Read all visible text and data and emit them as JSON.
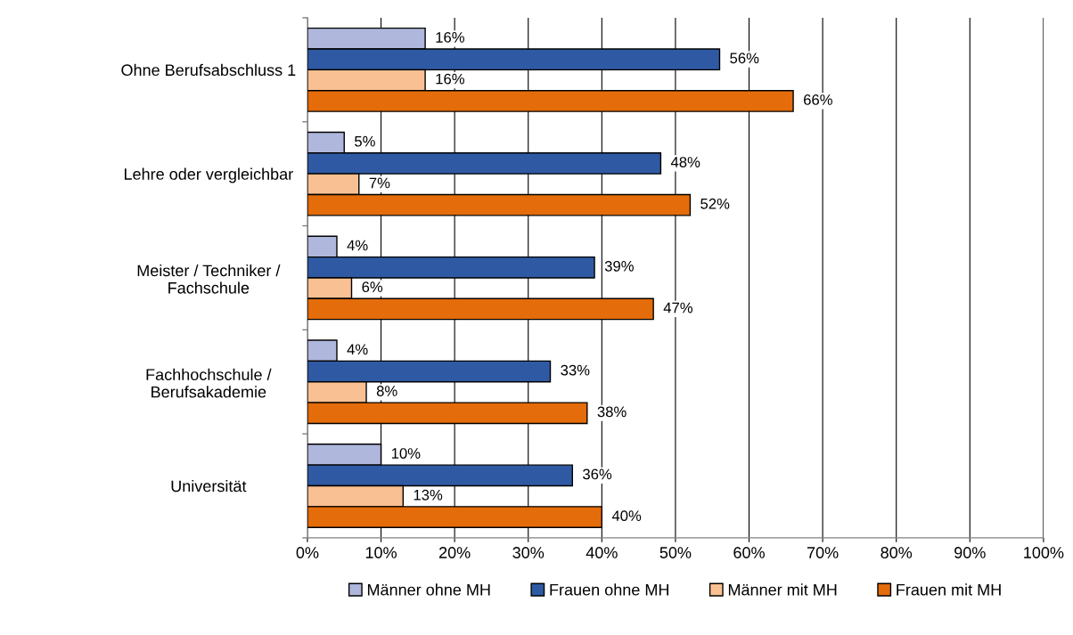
{
  "chart_data": {
    "type": "bar",
    "orientation": "horizontal",
    "categories": [
      "Ohne Berufsabschluss 1",
      "Lehre oder vergleichbar",
      "Meister / Techniker /\nFachschule",
      "Fachhochschule /\nBerufsakademie",
      "Universität"
    ],
    "series": [
      {
        "name": "Männer ohne MH",
        "color": "#b0b7dc",
        "values": [
          16,
          5,
          4,
          4,
          10
        ],
        "value_labels": [
          "16%",
          "5%",
          "4%",
          "4%",
          "10%"
        ]
      },
      {
        "name": "Frauen ohne MH",
        "color": "#2f5aa3",
        "values": [
          56,
          48,
          39,
          33,
          36
        ],
        "value_labels": [
          "56%",
          "48%",
          "39%",
          "33%",
          "36%"
        ]
      },
      {
        "name": "Männer mit MH",
        "color": "#f9c093",
        "values": [
          16,
          7,
          6,
          8,
          13
        ],
        "value_labels": [
          "16%",
          "7%",
          "6%",
          "8%",
          "13%"
        ]
      },
      {
        "name": "Frauen mit MH",
        "color": "#e46c0a",
        "values": [
          66,
          52,
          47,
          38,
          40
        ],
        "value_labels": [
          "66%",
          "52%",
          "47%",
          "38%",
          "40%"
        ]
      }
    ],
    "xlim": [
      0,
      100
    ],
    "xticks": [
      {
        "value": 0,
        "label": "0%"
      },
      {
        "value": 10,
        "label": "10%"
      },
      {
        "value": 20,
        "label": "20%"
      },
      {
        "value": 30,
        "label": "30%"
      },
      {
        "value": 40,
        "label": "40%"
      },
      {
        "value": 50,
        "label": "50%"
      },
      {
        "value": 60,
        "label": "60%"
      },
      {
        "value": 70,
        "label": "70%"
      },
      {
        "value": 80,
        "label": "80%"
      },
      {
        "value": 90,
        "label": "90%"
      },
      {
        "value": 100,
        "label": "100%"
      }
    ],
    "grid": "x",
    "legend": "bottom"
  }
}
